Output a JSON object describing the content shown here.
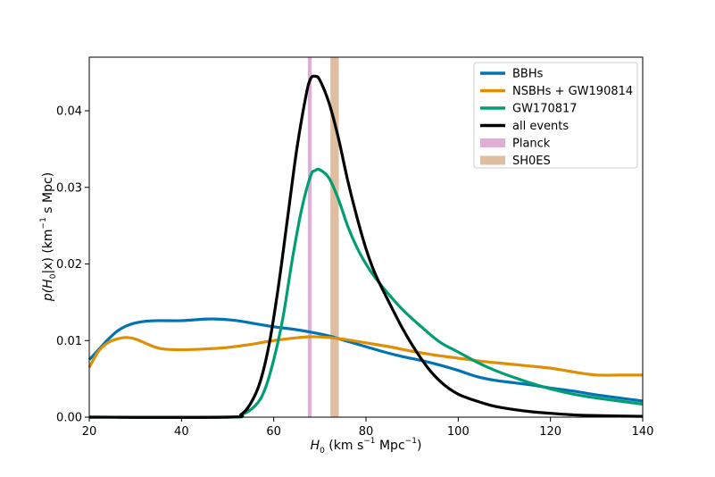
{
  "chart_data": {
    "type": "line",
    "xlabel": {
      "main": "H",
      "sub": "0",
      "rest1": " (km s",
      "sup1": "−1",
      "rest2": " Mpc",
      "sup2": "−1",
      "rest3": ")"
    },
    "ylabel": {
      "p": "p(H",
      "sub": "0",
      "mid": "|x) (km",
      "sup": "−1",
      "rest": " s Mpc)"
    },
    "xlim": [
      20,
      140
    ],
    "ylim": [
      0,
      0.047
    ],
    "x_ticks": [
      20,
      40,
      60,
      80,
      100,
      120,
      140
    ],
    "y_ticks": [
      0.0,
      0.01,
      0.02,
      0.03,
      0.04
    ],
    "x_tick_labels": [
      "20",
      "40",
      "60",
      "80",
      "100",
      "120",
      "140"
    ],
    "y_tick_labels": [
      "0.00",
      "0.01",
      "0.02",
      "0.03",
      "0.04"
    ],
    "legend_position": "top-right",
    "series": [
      {
        "name": "BBHs",
        "color": "#0173b2",
        "points": [
          [
            20,
            0.0075
          ],
          [
            22,
            0.0088
          ],
          [
            24,
            0.0101
          ],
          [
            26,
            0.0112
          ],
          [
            28,
            0.0119
          ],
          [
            30,
            0.0123
          ],
          [
            32,
            0.0125
          ],
          [
            35,
            0.0126
          ],
          [
            40,
            0.0126
          ],
          [
            45,
            0.0128
          ],
          [
            48,
            0.0128
          ],
          [
            52,
            0.0126
          ],
          [
            56,
            0.0122
          ],
          [
            60,
            0.0118
          ],
          [
            64,
            0.0115
          ],
          [
            68,
            0.0111
          ],
          [
            72,
            0.0106
          ],
          [
            76,
            0.0099
          ],
          [
            80,
            0.0092
          ],
          [
            84,
            0.0085
          ],
          [
            88,
            0.0079
          ],
          [
            92,
            0.0074
          ],
          [
            96,
            0.0068
          ],
          [
            100,
            0.0061
          ],
          [
            104,
            0.0053
          ],
          [
            108,
            0.0048
          ],
          [
            112,
            0.0045
          ],
          [
            116,
            0.0042
          ],
          [
            120,
            0.0038
          ],
          [
            125,
            0.0034
          ],
          [
            130,
            0.0029
          ],
          [
            135,
            0.0025
          ],
          [
            140,
            0.0021
          ]
        ]
      },
      {
        "name": "NSBHs + GW190814",
        "color": "#de8f05",
        "points": [
          [
            20,
            0.0065
          ],
          [
            22,
            0.0086
          ],
          [
            24,
            0.0097
          ],
          [
            26,
            0.0102
          ],
          [
            28,
            0.0104
          ],
          [
            30,
            0.0102
          ],
          [
            32,
            0.0097
          ],
          [
            34,
            0.0092
          ],
          [
            36,
            0.0089
          ],
          [
            40,
            0.0088
          ],
          [
            45,
            0.0089
          ],
          [
            50,
            0.0091
          ],
          [
            55,
            0.0095
          ],
          [
            60,
            0.01
          ],
          [
            64,
            0.0103
          ],
          [
            68,
            0.0105
          ],
          [
            72,
            0.0104
          ],
          [
            76,
            0.0101
          ],
          [
            80,
            0.0097
          ],
          [
            85,
            0.0092
          ],
          [
            90,
            0.0086
          ],
          [
            95,
            0.0081
          ],
          [
            100,
            0.0077
          ],
          [
            105,
            0.0073
          ],
          [
            110,
            0.007
          ],
          [
            115,
            0.0067
          ],
          [
            120,
            0.0064
          ],
          [
            125,
            0.0059
          ],
          [
            130,
            0.0055
          ],
          [
            135,
            0.0055
          ],
          [
            140,
            0.0055
          ]
        ]
      },
      {
        "name": "GW170817",
        "color": "#029e73",
        "points": [
          [
            20,
            0.0
          ],
          [
            50,
            0.0
          ],
          [
            53,
            0.0003
          ],
          [
            56,
            0.0015
          ],
          [
            58,
            0.0035
          ],
          [
            60,
            0.0075
          ],
          [
            62,
            0.013
          ],
          [
            64,
            0.0205
          ],
          [
            66,
            0.027
          ],
          [
            68,
            0.0315
          ],
          [
            69,
            0.0322
          ],
          [
            70,
            0.0323
          ],
          [
            72,
            0.0312
          ],
          [
            74,
            0.0285
          ],
          [
            76,
            0.025
          ],
          [
            78,
            0.0222
          ],
          [
            80,
            0.02
          ],
          [
            82,
            0.0182
          ],
          [
            85,
            0.016
          ],
          [
            88,
            0.014
          ],
          [
            92,
            0.0118
          ],
          [
            96,
            0.0098
          ],
          [
            100,
            0.0085
          ],
          [
            104,
            0.0072
          ],
          [
            108,
            0.0061
          ],
          [
            112,
            0.0052
          ],
          [
            116,
            0.0044
          ],
          [
            120,
            0.0037
          ],
          [
            125,
            0.003
          ],
          [
            130,
            0.0025
          ],
          [
            135,
            0.0021
          ],
          [
            140,
            0.0017
          ]
        ]
      },
      {
        "name": "all events",
        "color": "#000000",
        "points": [
          [
            20,
            0.0
          ],
          [
            50,
            0.0
          ],
          [
            53,
            0.0004
          ],
          [
            55,
            0.0018
          ],
          [
            57,
            0.0045
          ],
          [
            59,
            0.0095
          ],
          [
            61,
            0.017
          ],
          [
            63,
            0.026
          ],
          [
            65,
            0.035
          ],
          [
            67,
            0.042
          ],
          [
            68,
            0.0442
          ],
          [
            69,
            0.0445
          ],
          [
            70,
            0.044
          ],
          [
            72,
            0.041
          ],
          [
            74,
            0.0365
          ],
          [
            76,
            0.031
          ],
          [
            78,
            0.0262
          ],
          [
            80,
            0.022
          ],
          [
            82,
            0.0187
          ],
          [
            85,
            0.015
          ],
          [
            88,
            0.0115
          ],
          [
            91,
            0.0085
          ],
          [
            94,
            0.006
          ],
          [
            97,
            0.0042
          ],
          [
            100,
            0.003
          ],
          [
            104,
            0.0021
          ],
          [
            108,
            0.0014
          ],
          [
            112,
            0.001
          ],
          [
            116,
            0.0007
          ],
          [
            120,
            0.0005
          ],
          [
            125,
            0.0003
          ],
          [
            130,
            0.0002
          ],
          [
            140,
            0.0001
          ]
        ]
      }
    ],
    "bands": [
      {
        "name": "Planck",
        "color": "#cc78bc",
        "opacity": 0.6,
        "x0": 67.4,
        "x1": 68.2
      },
      {
        "name": "SH0ES",
        "color": "#ca9161",
        "opacity": 0.6,
        "x0": 72.3,
        "x1": 74.1
      }
    ]
  }
}
